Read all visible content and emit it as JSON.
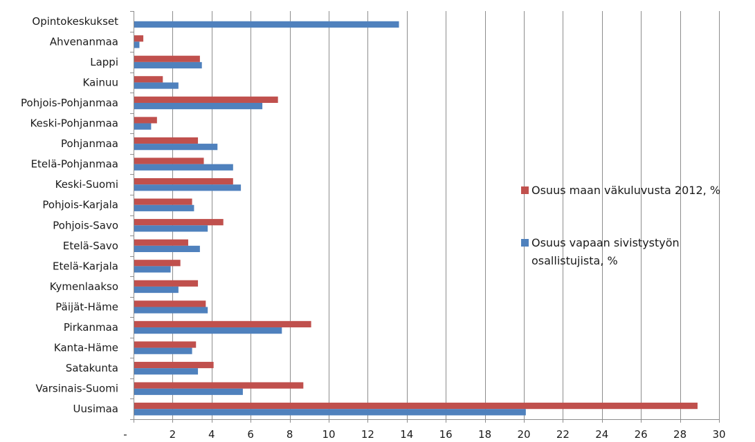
{
  "chart_data": {
    "type": "bar",
    "orientation": "horizontal",
    "categories": [
      "Opintokeskukset",
      "Ahvenanmaa",
      "Lappi",
      "Kainuu",
      "Pohjois-Pohjanmaa",
      "Keski-Pohjanmaa",
      "Pohjanmaa",
      "Etelä-Pohjanmaa",
      "Keski-Suomi",
      "Pohjois-Karjala",
      "Pohjois-Savo",
      "Etelä-Savo",
      "Etelä-Karjala",
      "Kymenlaakso",
      "Päijät-Häme",
      "Pirkanmaa",
      "Kanta-Häme",
      "Satakunta",
      "Varsinais-Suomi",
      "Uusimaa"
    ],
    "series": [
      {
        "name": "Osuus maan väkuluvusta 2012, %",
        "color": "#c0504d",
        "values": [
          0,
          0.5,
          3.4,
          1.5,
          7.4,
          1.2,
          3.3,
          3.6,
          5.1,
          3.0,
          4.6,
          2.8,
          2.4,
          3.3,
          3.7,
          9.1,
          3.2,
          4.1,
          8.7,
          28.9
        ]
      },
      {
        "name": "Osuus vapaan sivistystyön osallistujista, %",
        "color": "#4f81bd",
        "values": [
          13.6,
          0.3,
          3.5,
          2.3,
          6.6,
          0.9,
          4.3,
          5.1,
          5.5,
          3.1,
          3.8,
          3.4,
          1.9,
          2.3,
          3.8,
          7.6,
          3.0,
          3.3,
          5.6,
          20.1
        ]
      }
    ],
    "xlim": [
      0,
      30
    ],
    "x_ticks": [
      "-",
      "2",
      "4",
      "6",
      "8",
      "10",
      "12",
      "14",
      "16",
      "18",
      "20",
      "22",
      "24",
      "26",
      "28",
      "30"
    ],
    "grid": "vertical",
    "legend": {
      "position": "right",
      "entries": [
        {
          "lines": [
            "Osuus maan väkuluvusta 2012, %"
          ],
          "color": "#c0504d"
        },
        {
          "lines": [
            "Osuus vapaan sivistystyön",
            "osallistujista, %"
          ],
          "color": "#4f81bd"
        }
      ]
    },
    "title": "",
    "xlabel": "",
    "ylabel": ""
  }
}
